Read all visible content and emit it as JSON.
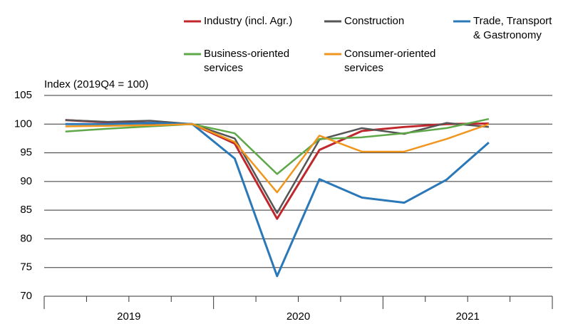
{
  "chart_data": {
    "type": "line",
    "y_axis_label": "Index (2019Q4 = 100)",
    "categories": [
      null,
      null,
      null,
      null,
      null,
      null,
      null,
      null,
      null,
      null,
      null,
      null
    ],
    "groups": [
      "2019",
      "2020",
      "2021"
    ],
    "ylim": [
      70,
      105
    ],
    "yticks": [
      70,
      75,
      80,
      85,
      90,
      95,
      100,
      105
    ],
    "grid": true,
    "legend": "top",
    "series": [
      {
        "name": "Industry (incl. Agr.)",
        "color": "#c0272d",
        "values": [
          100.7,
          100.3,
          100.2,
          100,
          96.6,
          83.5,
          95.5,
          98.8,
          99.5,
          100,
          100.1,
          null
        ]
      },
      {
        "name": "Construction",
        "color": "#555555",
        "values": [
          100.7,
          100.4,
          100.6,
          100,
          97.5,
          84.5,
          97.3,
          99.3,
          98.3,
          100.2,
          99.5,
          null
        ]
      },
      {
        "name": "Trade, Transport\n& Gastronomy",
        "color": "#2a78b8",
        "values": [
          100.0,
          100.0,
          100.2,
          100,
          94,
          73.5,
          90.4,
          87.2,
          86.3,
          90.3,
          96.8,
          null
        ]
      },
      {
        "name": "Business-oriented\nservices",
        "color": "#5fa84a",
        "values": [
          98.7,
          99.2,
          99.6,
          100,
          98.4,
          91.3,
          97.4,
          97.7,
          98.4,
          99.3,
          100.9,
          null
        ]
      },
      {
        "name": "Consumer-oriented\nservices",
        "color": "#f0961e",
        "values": [
          99.6,
          99.7,
          99.8,
          100,
          96.9,
          88.1,
          98.0,
          95.2,
          95.2,
          97.4,
          100.0,
          null
        ]
      }
    ]
  }
}
